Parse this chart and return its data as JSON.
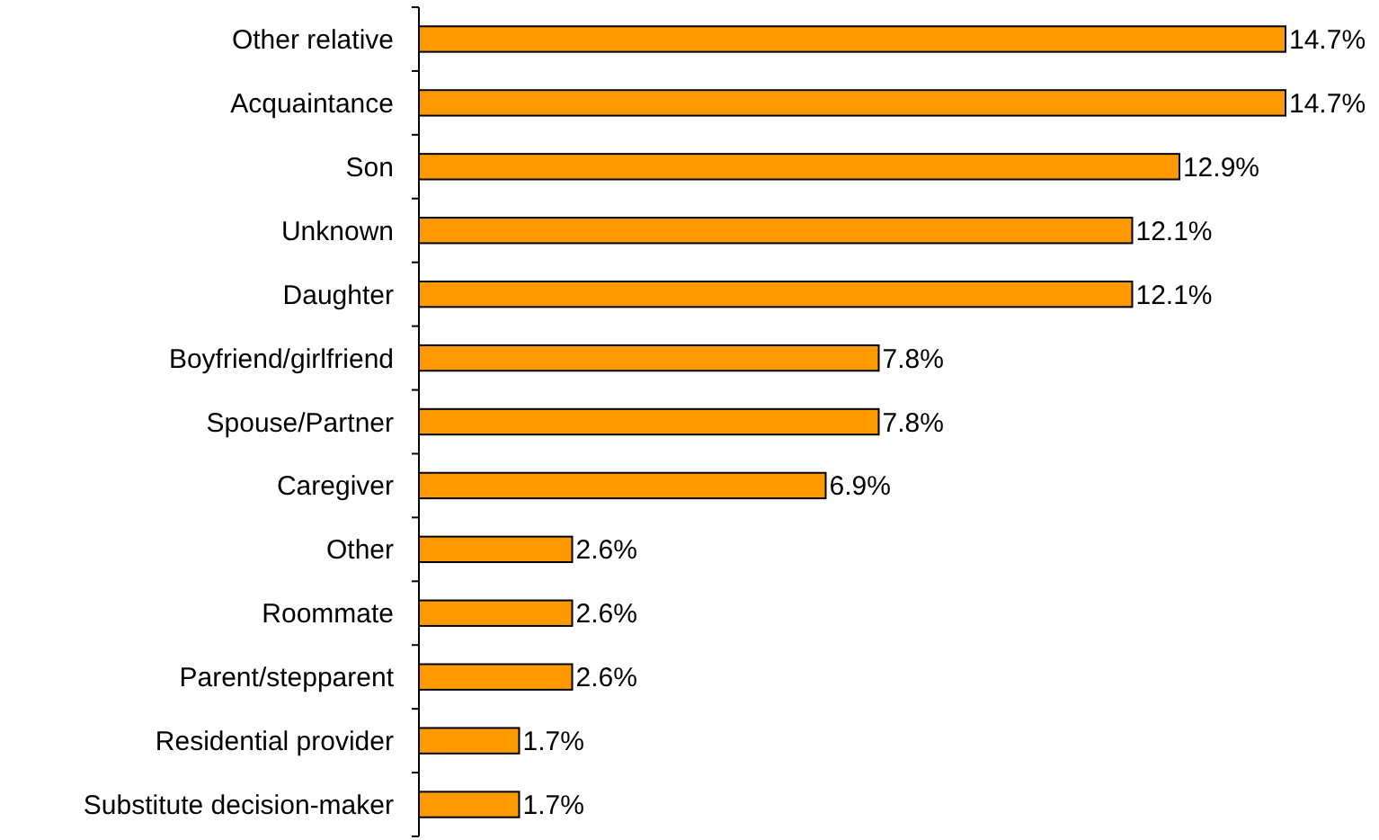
{
  "chart_data": {
    "type": "bar",
    "orientation": "horizontal",
    "categories": [
      "Other relative",
      "Acquaintance",
      "Son",
      "Unknown",
      "Daughter",
      "Boyfriend/girlfriend",
      "Spouse/Partner",
      "Caregiver",
      "Other",
      "Roommate",
      "Parent/stepparent",
      "Residential provider",
      "Substitute decision-maker"
    ],
    "values": [
      14.7,
      14.7,
      12.9,
      12.1,
      12.1,
      7.8,
      7.8,
      6.9,
      2.6,
      2.6,
      2.6,
      1.7,
      1.7
    ],
    "value_labels": [
      "14.7%",
      "14.7%",
      "12.9%",
      "12.1%",
      "12.1%",
      "7.8%",
      "7.8%",
      "6.9%",
      "2.6%",
      "2.6%",
      "2.6%",
      "1.7%",
      "1.7%"
    ],
    "color": "#ff9900"
  }
}
